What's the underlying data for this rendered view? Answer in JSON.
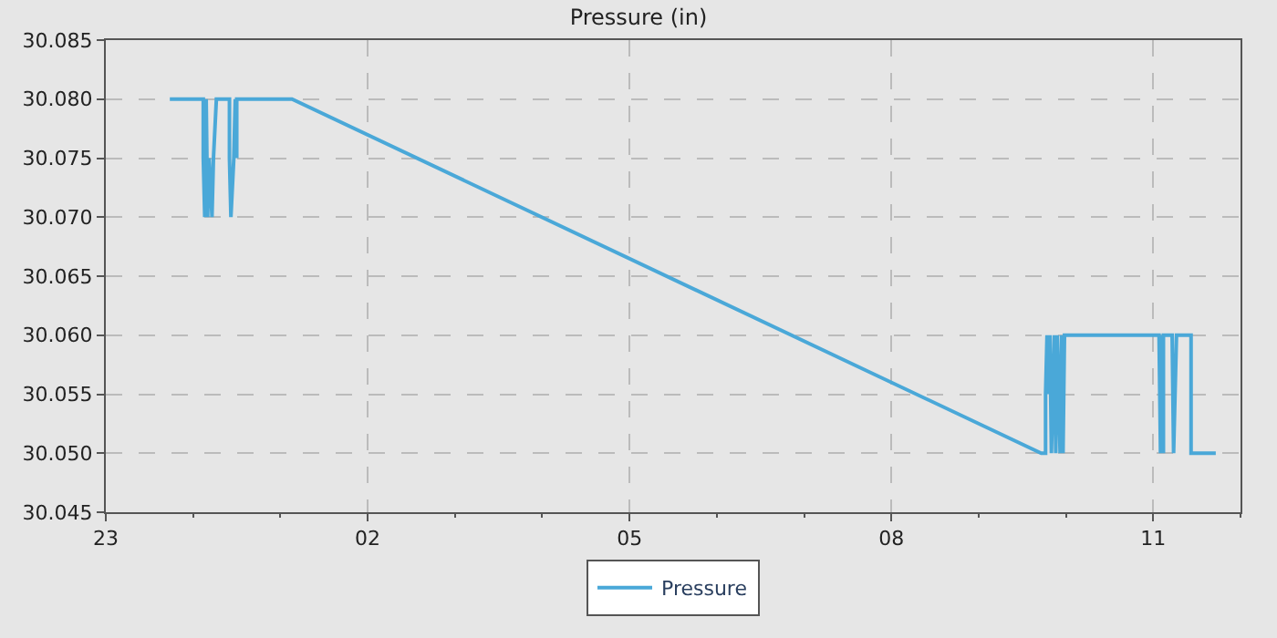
{
  "chart_data": {
    "type": "line",
    "title": "Pressure (in)",
    "x": [
      "--01-01T23:44",
      "--01-02T00:07",
      "--01-02T00:07",
      "--01-02T00:08",
      "--01-02T00:09",
      "--01-02T00:10",
      "--01-02T00:11",
      "--01-02T00:13",
      "--01-02T00:14",
      "--01-02T00:16",
      "--01-02T00:25",
      "--01-02T00:25",
      "--01-02T00:26",
      "--01-02T00:28",
      "--01-02T00:29",
      "--01-02T00:30",
      "--01-02T00:30",
      "--01-02T01:08",
      "--01-02T09:43",
      "--01-02T09:46",
      "--01-02T09:46",
      "--01-02T09:47",
      "--01-02T09:48",
      "--01-02T09:49",
      "--01-02T09:50",
      "--01-02T09:52",
      "--01-02T09:53",
      "--01-02T09:54",
      "--01-02T09:56",
      "--01-02T09:57",
      "--01-02T09:58",
      "--01-02T09:59",
      "--01-02T11:04",
      "--01-02T11:05",
      "--01-02T11:06",
      "--01-02T11:07",
      "--01-02T11:07",
      "--01-02T11:13",
      "--01-02T11:14",
      "--01-02T11:16",
      "--01-02T11:26",
      "--01-02T11:26",
      "--01-02T11:43"
    ],
    "series": [
      {
        "name": "Pressure",
        "color": "#4aa8d8",
        "values": [
          30.08,
          30.08,
          30.075,
          30.07,
          30.08,
          30.07,
          30.075,
          30.07,
          30.075,
          30.08,
          30.08,
          30.075,
          30.07,
          30.075,
          30.08,
          30.075,
          30.08,
          30.08,
          30.05,
          30.05,
          30.055,
          30.06,
          30.055,
          30.06,
          30.05,
          30.06,
          30.05,
          30.06,
          30.05,
          30.06,
          30.05,
          30.06,
          30.06,
          30.05,
          30.06,
          30.05,
          30.06,
          30.06,
          30.05,
          30.06,
          30.06,
          30.05,
          30.05
        ]
      }
    ],
    "xlim": [
      "--01-01T23:00",
      "--01-02T12:00"
    ],
    "xticks": [
      {
        "value": "--01-01T23:00",
        "label": "23"
      },
      {
        "value": "--01-02T02:00",
        "label": "02"
      },
      {
        "value": "--01-02T05:00",
        "label": "05"
      },
      {
        "value": "--01-02T08:00",
        "label": "08"
      },
      {
        "value": "--01-02T11:00",
        "label": "11"
      }
    ],
    "ylim": [
      30.045,
      30.085
    ],
    "yticks": [
      30.045,
      {
        "value": 30.05,
        "label": "30.050"
      },
      30.055,
      {
        "value": 30.06,
        "label": "30.060"
      },
      30.065,
      {
        "value": 30.07,
        "label": "30.070"
      },
      30.075,
      {
        "value": 30.08,
        "label": "30.080"
      },
      30.085
    ],
    "grid": true,
    "legend": "bottom",
    "marker": "none",
    "line_style": "solid"
  }
}
